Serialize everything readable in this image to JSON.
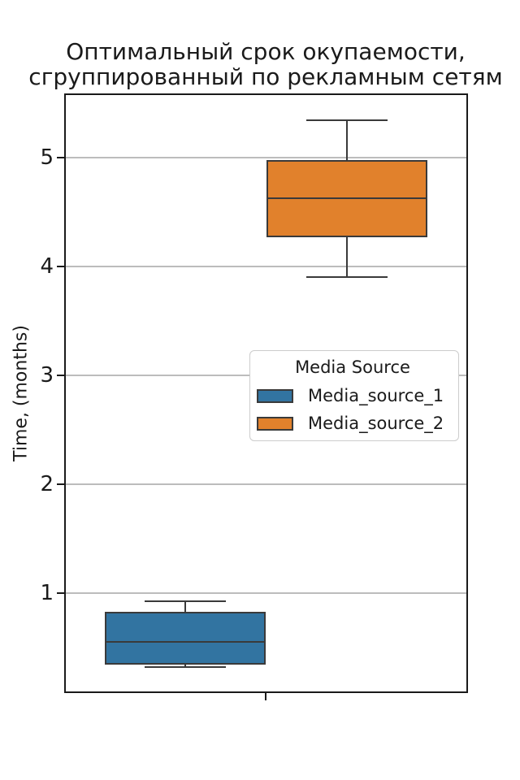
{
  "chart_data": {
    "type": "box",
    "title": "Оптимальный срок окупаемости,\nсгруппированный по рекламным сетям",
    "ylabel": "Time, (months)",
    "xlabel": "",
    "categories": [
      ""
    ],
    "grid": "horizontal",
    "ylim": [
      0.08,
      5.59
    ],
    "yticks": [
      1,
      2,
      3,
      4,
      5
    ],
    "legend": {
      "title": "Media Source",
      "position": "center-right"
    },
    "series": [
      {
        "name": "Media_source_1",
        "color": "#3274A1",
        "stats": {
          "whisker_low": 0.32,
          "q1": 0.34,
          "median": 0.55,
          "q3": 0.83,
          "whisker_high": 0.92
        }
      },
      {
        "name": "Media_source_2",
        "color": "#E1812C",
        "stats": {
          "whisker_low": 3.9,
          "q1": 4.27,
          "median": 4.63,
          "q3": 4.98,
          "whisker_high": 5.34
        }
      }
    ],
    "colors": {
      "box_edge": "#3A3A3A",
      "grid": "#BCBCBC",
      "spine": "#1A1A1A"
    }
  }
}
